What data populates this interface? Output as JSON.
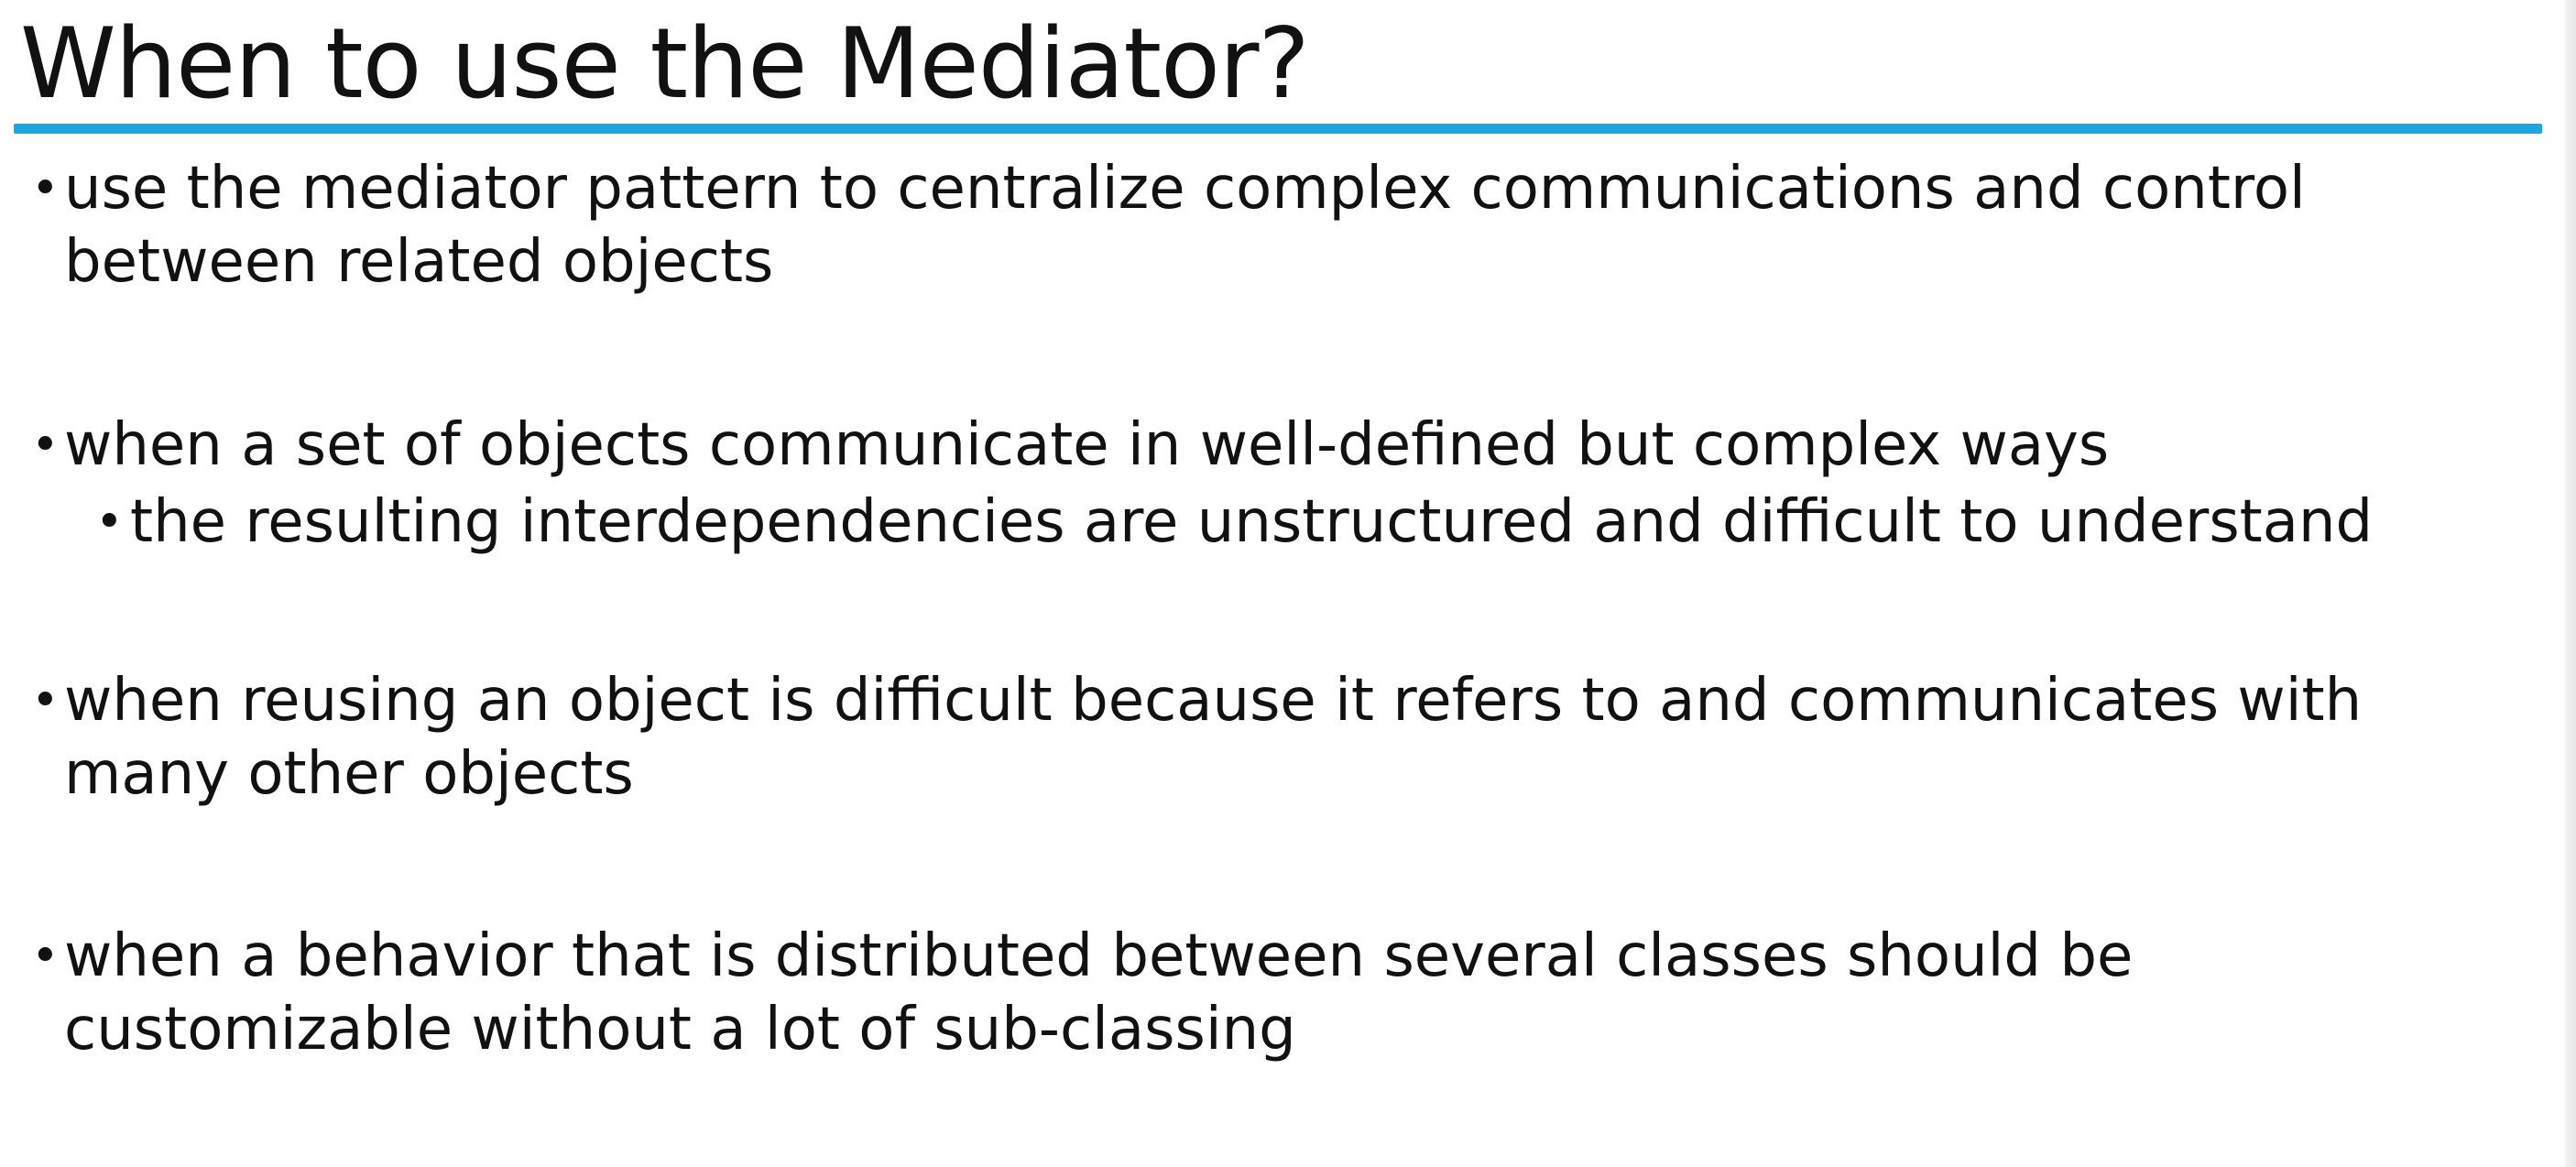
{
  "slide": {
    "title": "When to use the Mediator?",
    "accent_color": "#1aa7df",
    "bullets": [
      {
        "text": "use the mediator pattern to centralize complex communications and control between related objects",
        "marker": "•"
      },
      {
        "text": "when a set of objects communicate in well-defined but complex ways",
        "marker": "•",
        "sub_bullets": [
          {
            "text": "the resulting interdependencies are unstructured and difficult to understand",
            "marker": "•"
          }
        ]
      },
      {
        "text": "when reusing an object is difficult because it refers to and communicates with many other objects",
        "marker": "•"
      },
      {
        "text": "when a behavior that is distributed between several classes should be customizable without a lot of sub-classing",
        "marker": "•"
      }
    ]
  }
}
